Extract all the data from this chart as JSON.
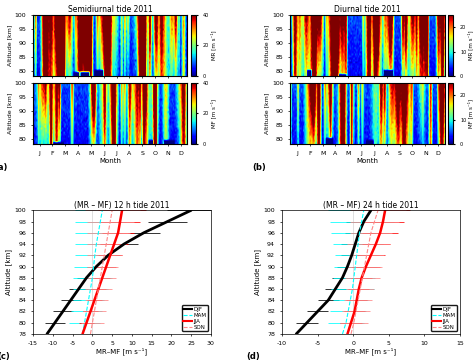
{
  "title_semi": "Semidiurnal tide 2011",
  "title_diurnal": "Diurnal tide 2011",
  "title_c": "(MR – MF) 12 h tide 2011",
  "title_d": "(MR – MF) 24 h tide 2011",
  "month_labels": [
    "J",
    "F",
    "M",
    "A",
    "M",
    "J",
    "J",
    "A",
    "S",
    "O",
    "N",
    "D"
  ],
  "xlabel_c": "MR–MF [m s⁻¹]",
  "xlabel_d": "MR–MF [m s⁻¹]",
  "ylabel": "Altitude [km]",
  "clabel_MR_semi": "MR [m s⁻¹]",
  "clabel_MF_semi": "MF [m s⁻¹]",
  "clabel_MR_diurnal": "MR [m s⁻¹]",
  "clabel_MF_diurnal": "MF [m s⁻¹]",
  "clim_semi": [
    0,
    40
  ],
  "clim_diurnal": [
    0,
    25
  ],
  "clim_semi_ticks": [
    0,
    20,
    40
  ],
  "clim_diurnal_ticks": [
    0,
    10,
    20
  ],
  "xlim_c": [
    -15,
    30
  ],
  "xlim_d": [
    -10,
    15
  ],
  "xticks_c": [
    -15,
    -10,
    -5,
    0,
    5,
    10,
    15,
    20,
    25,
    30
  ],
  "xticks_d": [
    -10,
    -5,
    0,
    5,
    10,
    15
  ],
  "yticks_line": [
    78,
    80,
    82,
    84,
    86,
    88,
    90,
    92,
    94,
    96,
    98,
    100
  ],
  "yticks_cmap": [
    80,
    85,
    90,
    95,
    100
  ],
  "altitudes": [
    78,
    80,
    82,
    84,
    86,
    88,
    90,
    92,
    94,
    96,
    98,
    100
  ],
  "c_DJF_vals": [
    -11.5,
    -9.5,
    -7.5,
    -5.5,
    -3.5,
    -1.5,
    1.0,
    4.0,
    8.0,
    13.0,
    19.0,
    25.0
  ],
  "c_MAM_vals": [
    -2.5,
    -2.0,
    -1.5,
    -1.0,
    -0.5,
    0.0,
    0.3,
    0.6,
    1.0,
    1.5,
    2.0,
    2.5
  ],
  "c_JJA_vals": [
    -2.5,
    -1.5,
    -0.5,
    0.5,
    1.5,
    2.5,
    3.5,
    4.5,
    5.5,
    6.5,
    7.0,
    7.5
  ],
  "c_SON_vals": [
    -0.5,
    0.0,
    0.5,
    1.0,
    1.5,
    2.0,
    2.5,
    3.0,
    3.5,
    4.0,
    4.5,
    5.0
  ],
  "c_DJF_err": [
    2.5,
    2.5,
    2.5,
    2.5,
    2.5,
    2.5,
    2.5,
    3.0,
    3.5,
    4.0,
    5.0,
    6.0
  ],
  "c_MAM_err": [
    4.0,
    4.0,
    4.0,
    4.0,
    4.5,
    5.0,
    5.0,
    5.0,
    5.5,
    6.0,
    6.5,
    7.0
  ],
  "c_JJA_err": [
    2.0,
    2.0,
    2.0,
    2.0,
    2.0,
    2.0,
    2.5,
    3.0,
    3.5,
    4.0,
    5.0,
    6.0
  ],
  "c_SON_err": [
    3.0,
    3.0,
    3.0,
    3.0,
    3.5,
    4.0,
    4.0,
    4.5,
    5.0,
    5.5,
    6.0,
    7.0
  ],
  "d_DJF_vals": [
    -8.0,
    -6.5,
    -5.0,
    -3.5,
    -2.5,
    -1.5,
    -0.8,
    -0.2,
    0.3,
    0.8,
    1.5,
    2.5
  ],
  "d_MAM_vals": [
    -1.5,
    -1.0,
    -0.7,
    -0.4,
    -0.1,
    0.1,
    0.3,
    0.5,
    0.7,
    0.9,
    1.2,
    1.5
  ],
  "d_JJA_vals": [
    -0.8,
    -0.3,
    0.2,
    0.5,
    0.8,
    1.2,
    1.8,
    2.5,
    3.2,
    3.8,
    4.2,
    4.5
  ],
  "d_SON_vals": [
    -0.3,
    0.1,
    0.4,
    0.7,
    1.0,
    1.3,
    1.6,
    1.9,
    2.2,
    2.5,
    3.0,
    3.5
  ],
  "d_DJF_err": [
    1.5,
    1.5,
    1.5,
    1.5,
    1.5,
    1.5,
    1.5,
    1.5,
    2.0,
    2.0,
    2.5,
    3.0
  ],
  "d_MAM_err": [
    2.5,
    2.5,
    2.5,
    2.5,
    3.0,
    3.0,
    3.0,
    3.0,
    3.5,
    4.0,
    4.5,
    5.0
  ],
  "d_JJA_err": [
    1.5,
    1.5,
    1.5,
    1.5,
    1.5,
    1.5,
    2.0,
    2.0,
    2.0,
    2.5,
    3.0,
    3.5
  ],
  "d_SON_err": [
    2.0,
    2.0,
    2.0,
    2.0,
    2.0,
    2.5,
    2.5,
    2.5,
    3.0,
    3.0,
    3.5,
    4.0
  ]
}
